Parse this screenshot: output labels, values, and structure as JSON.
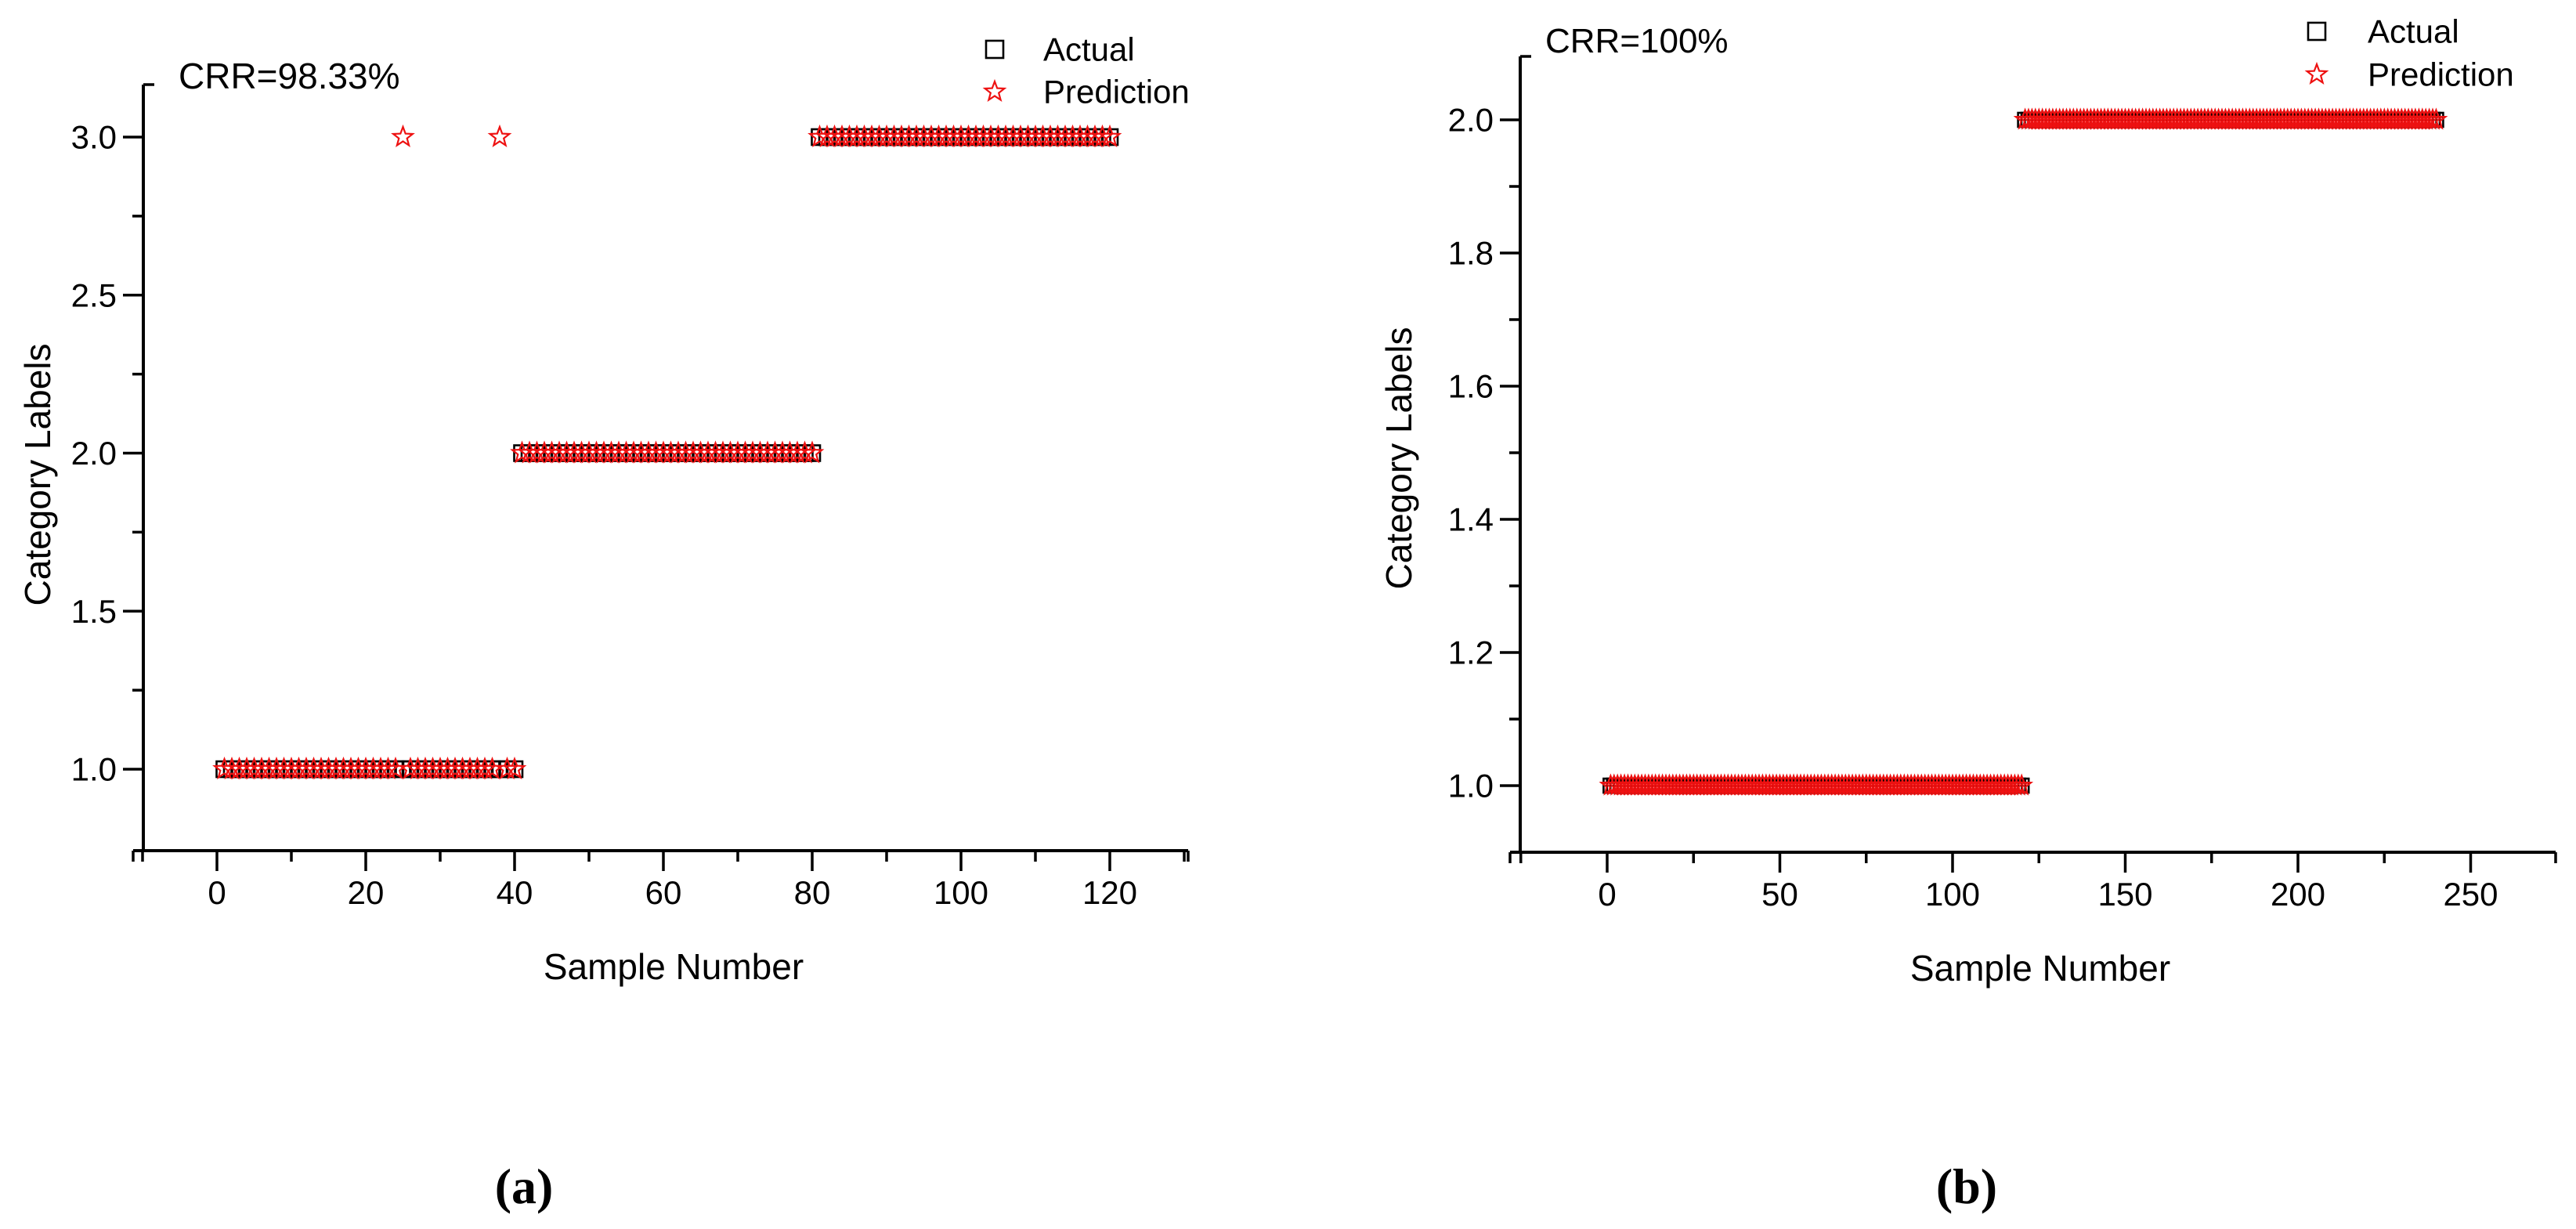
{
  "figure": {
    "background": "#ffffff",
    "captions": [
      {
        "id": "a",
        "label": "(a)"
      },
      {
        "id": "b",
        "label": "(b)"
      }
    ]
  },
  "chart_data": [
    {
      "id": "a",
      "type": "scatter",
      "annotation": "CRR=98.33%",
      "xlabel": "Sample Number",
      "ylabel": "Category Labels",
      "legend": [
        {
          "series": "actual",
          "label": "Actual"
        },
        {
          "series": "prediction",
          "label": "Prediction"
        }
      ],
      "x_major_ticks": [
        0,
        20,
        40,
        60,
        80,
        100,
        120
      ],
      "x_tick_labels": [
        "0",
        "20",
        "40",
        "60",
        "80",
        "100",
        "120"
      ],
      "x_minor_step": 10,
      "y_major_ticks": [
        1.0,
        1.5,
        2.0,
        2.5,
        3.0
      ],
      "y_tick_labels": [
        "1.0",
        "1.5",
        "2.0",
        "2.5",
        "3.0"
      ],
      "y_minor_step": 0.25,
      "xlim": [
        -11,
        130.6
      ],
      "ylim": [
        0.74,
        3.17
      ],
      "grid": false,
      "legend_position": "top-right",
      "series": {
        "actual": {
          "name": "Actual",
          "marker": "open-square",
          "color": "#000000",
          "runs": [
            {
              "y": 1,
              "from": 1,
              "to": 40
            },
            {
              "y": 2,
              "from": 41,
              "to": 80
            },
            {
              "y": 3,
              "from": 81,
              "to": 120
            }
          ],
          "points": []
        },
        "prediction": {
          "name": "Prediction",
          "marker": "open-star",
          "color": "#ee1111",
          "runs": [
            {
              "y": 1,
              "from": 1,
              "to": 40,
              "skip": [
                25,
                38
              ]
            },
            {
              "y": 2,
              "from": 41,
              "to": 80
            },
            {
              "y": 3,
              "from": 81,
              "to": 120
            }
          ],
          "points": [
            {
              "x": 25,
              "y": 3
            },
            {
              "x": 38,
              "y": 3
            }
          ]
        }
      }
    },
    {
      "id": "b",
      "type": "scatter",
      "annotation": "CRR=100%",
      "xlabel": "Sample Number",
      "ylabel": "Category Labels",
      "legend": [
        {
          "series": "actual",
          "label": "Actual"
        },
        {
          "series": "prediction",
          "label": "Prediction"
        }
      ],
      "x_major_ticks": [
        0,
        50,
        100,
        150,
        200,
        250
      ],
      "x_tick_labels": [
        "0",
        "50",
        "100",
        "150",
        "200",
        "250"
      ],
      "x_minor_step": 25,
      "y_major_ticks": [
        1.0,
        1.2,
        1.4,
        1.6,
        1.8,
        2.0
      ],
      "y_tick_labels": [
        "1.0",
        "1.2",
        "1.4",
        "1.6",
        "1.8",
        "2.0"
      ],
      "y_minor_step": 0.1,
      "xlim": [
        -25,
        274.6
      ],
      "ylim": [
        0.9,
        2.1
      ],
      "grid": false,
      "legend_position": "top-right",
      "series": {
        "actual": {
          "name": "Actual",
          "marker": "open-square",
          "color": "#000000",
          "runs": [
            {
              "y": 1,
              "from": 1,
              "to": 120
            },
            {
              "y": 2,
              "from": 121,
              "to": 240
            }
          ],
          "points": []
        },
        "prediction": {
          "name": "Prediction",
          "marker": "open-star",
          "color": "#ee1111",
          "runs": [
            {
              "y": 1,
              "from": 1,
              "to": 120
            },
            {
              "y": 2,
              "from": 121,
              "to": 240
            }
          ],
          "points": []
        }
      }
    }
  ]
}
